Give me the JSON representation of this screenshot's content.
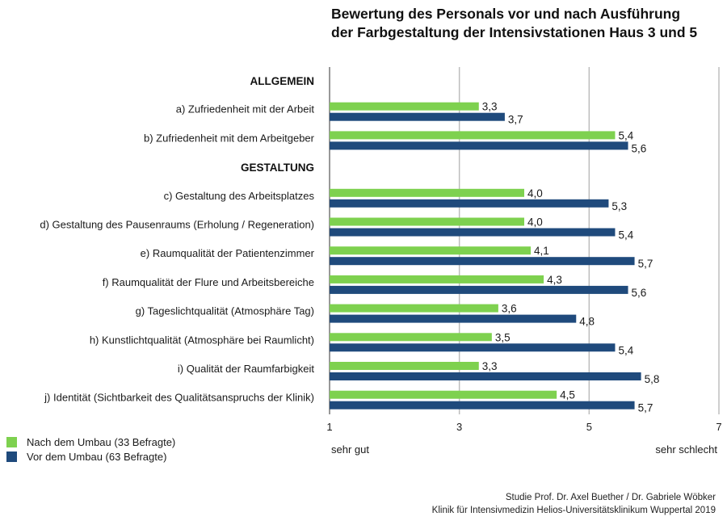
{
  "title": {
    "line1": "Bewertung des Personals vor und nach Ausführung",
    "line2": "der Farbgestaltung der Intensivstationen Haus 3 und 5"
  },
  "chart_data": {
    "type": "bar",
    "orientation": "horizontal",
    "title": "Bewertung des Personals vor und nach Ausführung der Farbgestaltung der Intensivstationen Haus 3 und 5",
    "xlabel": "",
    "ylabel": "",
    "xlim": [
      1,
      7
    ],
    "xticks": [
      1,
      3,
      5,
      7
    ],
    "xtick_labels": [
      "1",
      "3",
      "5",
      "7"
    ],
    "scale_labels": {
      "low": "sehr gut",
      "high": "sehr schlecht"
    },
    "grid": true,
    "legend_position": "bottom-left",
    "rows": [
      {
        "kind": "section",
        "label": "ALLGEMEIN"
      },
      {
        "kind": "category",
        "label": "a) Zufriedenheit mit der Arbeit",
        "index": 0
      },
      {
        "kind": "category",
        "label": "b) Zufriedenheit mit dem Arbeitgeber",
        "index": 1
      },
      {
        "kind": "section",
        "label": "GESTALTUNG"
      },
      {
        "kind": "category",
        "label": "c) Gestaltung des Arbeitsplatzes",
        "index": 2
      },
      {
        "kind": "category",
        "label": "d) Gestaltung des Pausenraums (Erholung / Regeneration)",
        "index": 3
      },
      {
        "kind": "category",
        "label": "e) Raumqualität der Patientenzimmer",
        "index": 4
      },
      {
        "kind": "category",
        "label": "f) Raumqualität der Flure und Arbeitsbereiche",
        "index": 5
      },
      {
        "kind": "category",
        "label": "g) Tageslichtqualität (Atmosphäre Tag)",
        "index": 6
      },
      {
        "kind": "category",
        "label": "h) Kunstlichtqualität (Atmosphäre bei Raumlicht)",
        "index": 7
      },
      {
        "kind": "category",
        "label": "i) Qualität der Raumfarbigkeit",
        "index": 8
      },
      {
        "kind": "category",
        "label": "j) Identität (Sichtbarkeit des Qualitätsanspruchs der Klinik)",
        "index": 9
      }
    ],
    "categories": [
      "a) Zufriedenheit mit der Arbeit",
      "b) Zufriedenheit mit dem Arbeitgeber",
      "c) Gestaltung des Arbeitsplatzes",
      "d) Gestaltung des Pausenraums (Erholung / Regeneration)",
      "e) Raumqualität der Patientenzimmer",
      "f) Raumqualität der Flure und Arbeitsbereiche",
      "g) Tageslichtqualität (Atmosphäre Tag)",
      "h) Kunstlichtqualität (Atmosphäre bei Raumlicht)",
      "i) Qualität der Raumfarbigkeit",
      "j) Identität (Sichtbarkeit des Qualitätsanspruchs der Klinik)"
    ],
    "series": [
      {
        "name": "Nach dem Umbau (33 Befragte)",
        "color": "#7ed14f",
        "values": [
          3.3,
          5.4,
          4.0,
          4.0,
          4.1,
          4.3,
          3.6,
          3.5,
          3.3,
          4.5
        ],
        "labels": [
          "3,3",
          "5,4",
          "4,0",
          "4,0",
          "4,1",
          "4,3",
          "3,6",
          "3,5",
          "3,3",
          "4,5"
        ]
      },
      {
        "name": "Vor dem Umbau (63 Befragte)",
        "color": "#1f4a7c",
        "values": [
          3.7,
          5.6,
          5.3,
          5.4,
          5.7,
          5.6,
          4.8,
          5.4,
          5.8,
          5.7
        ],
        "labels": [
          "3,7",
          "5,6",
          "5,3",
          "5,4",
          "5,7",
          "5,6",
          "4,8",
          "5,4",
          "5,8",
          "5,7"
        ]
      }
    ]
  },
  "legend": {
    "items": [
      {
        "label": "Nach dem Umbau (33 Befragte)",
        "color": "#7ed14f"
      },
      {
        "label": "Vor dem Umbau (63 Befragte)",
        "color": "#1f4a7c"
      }
    ]
  },
  "scale": {
    "low": "sehr gut",
    "high": "sehr schlecht"
  },
  "credits": {
    "line1": "Studie Prof. Dr. Axel Buether / Dr. Gabriele Wöbker",
    "line2": "Klinik für Intensivmedizin Helios-Universitätsklinikum Wuppertal 2019"
  }
}
